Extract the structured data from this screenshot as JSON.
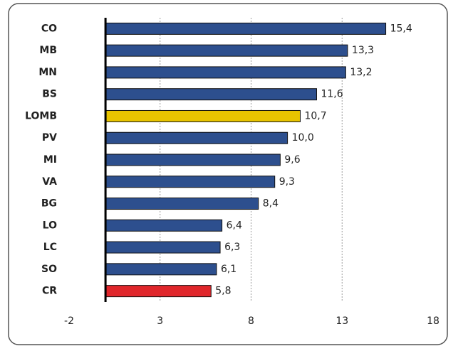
{
  "chart_data": {
    "type": "hbar",
    "categories": [
      "CO",
      "MB",
      "MN",
      "BS",
      "LOMB",
      "PV",
      "MI",
      "VA",
      "BG",
      "LO",
      "LC",
      "SO",
      "CR"
    ],
    "values": [
      15.4,
      13.3,
      13.2,
      11.6,
      10.7,
      10.0,
      9.6,
      9.3,
      8.4,
      6.4,
      6.3,
      6.1,
      5.8
    ],
    "value_labels": [
      "15,4",
      "13,3",
      "13,2",
      "11,6",
      "10,7",
      "10,0",
      "9,6",
      "9,3",
      "8,4",
      "6,4",
      "6,3",
      "6,1",
      "5,8"
    ],
    "colors": [
      "#2d4f8e",
      "#2d4f8e",
      "#2d4f8e",
      "#2d4f8e",
      "#e8c400",
      "#2d4f8e",
      "#2d4f8e",
      "#2d4f8e",
      "#2d4f8e",
      "#2d4f8e",
      "#2d4f8e",
      "#2d4f8e",
      "#e0262b"
    ],
    "xlim": [
      -2,
      18
    ],
    "xticks": [
      -2,
      3,
      8,
      13,
      18
    ],
    "grid": true
  }
}
